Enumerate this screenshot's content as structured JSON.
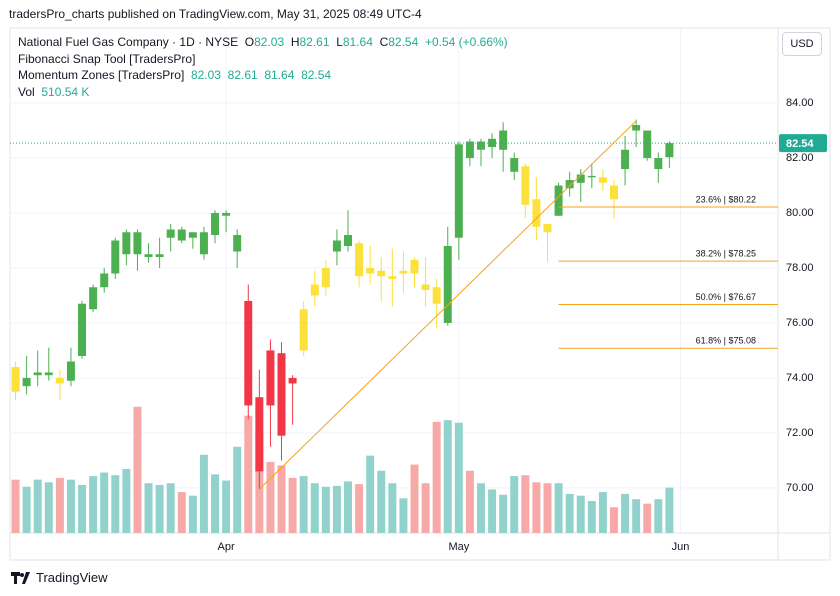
{
  "header": "tradersPro_charts published on TradingView.com, May 31, 2025 08:49 UTC-4",
  "brand": "TradingView",
  "currency": "USD",
  "chart_data": {
    "type": "candlestick",
    "title": "National Fuel Gas Company · 1D · NYSE",
    "ohlc_letters": [
      "O",
      "H",
      "L",
      "C"
    ],
    "change": "+0.54 (+0.66%)",
    "indicators": [
      "Fibonacci Snap Tool [TradersPro]",
      "Momentum Zones [TradersPro]"
    ],
    "volume_name": "Vol",
    "volume_label": "510.54 K",
    "open": [
      74.4,
      73.7,
      74.1,
      74.1,
      74.0,
      73.9,
      74.8,
      76.5,
      77.3,
      77.8,
      78.5,
      79.3,
      78.4,
      78.4,
      79.1,
      79.4,
      79.1,
      78.5,
      79.2,
      79.9,
      78.6,
      76.8,
      73.3,
      75.0,
      74.9,
      74.0,
      75.0,
      77.0,
      77.3,
      78.6,
      78.8,
      78.9,
      77.8,
      77.7,
      77.6,
      77.8,
      78.3,
      77.4,
      77.3,
      76.0,
      79.1,
      82.6,
      82.3,
      82.4,
      82.3,
      81.5,
      81.7,
      80.5,
      79.6,
      79.9,
      80.9,
      81.1,
      81.3,
      81.1,
      81.0,
      81.6,
      83.0,
      83.0,
      81.6,
      82.03
    ],
    "high": [
      74.6,
      74.8,
      75.0,
      75.1,
      74.3,
      75.1,
      76.8,
      77.4,
      78.0,
      79.1,
      79.4,
      79.4,
      78.9,
      79.1,
      79.6,
      79.5,
      79.3,
      79.5,
      80.1,
      80.1,
      79.4,
      77.4,
      74.3,
      75.4,
      75.3,
      74.1,
      76.8,
      77.9,
      78.3,
      79.4,
      80.1,
      79.0,
      78.8,
      78.4,
      78.7,
      78.6,
      78.4,
      78.4,
      77.6,
      79.5,
      82.6,
      82.7,
      82.7,
      82.9,
      83.3,
      82.2,
      81.8,
      81.3,
      79.6,
      81.1,
      81.5,
      81.6,
      81.8,
      81.6,
      81.2,
      82.8,
      83.4,
      83.0,
      82.2,
      82.61
    ],
    "low": [
      73.2,
      73.4,
      73.7,
      73.9,
      73.2,
      73.7,
      74.7,
      76.4,
      77.1,
      77.6,
      78.1,
      77.9,
      78.2,
      78.0,
      78.6,
      78.9,
      78.7,
      78.3,
      78.9,
      79.3,
      78.0,
      72.5,
      69.95,
      71.5,
      71.0,
      72.3,
      74.8,
      76.6,
      77.0,
      78.1,
      78.6,
      77.3,
      77.4,
      76.8,
      76.6,
      77.1,
      77.3,
      76.6,
      75.8,
      75.9,
      78.3,
      81.7,
      81.7,
      82.0,
      81.5,
      81.2,
      79.8,
      79.0,
      78.2,
      79.9,
      80.6,
      80.4,
      80.9,
      80.8,
      79.8,
      81.0,
      82.4,
      81.9,
      81.1,
      81.64
    ],
    "close": [
      73.5,
      74.0,
      74.2,
      74.2,
      73.8,
      74.6,
      76.7,
      77.3,
      77.8,
      79.0,
      79.3,
      78.5,
      78.5,
      78.5,
      79.4,
      79.0,
      79.3,
      79.3,
      80.0,
      80.0,
      79.2,
      73.0,
      70.6,
      73.0,
      71.9,
      73.8,
      76.5,
      77.4,
      78.0,
      79.0,
      79.2,
      77.7,
      78.0,
      77.9,
      77.7,
      77.9,
      77.8,
      77.2,
      76.7,
      78.8,
      82.5,
      82.0,
      82.6,
      82.7,
      83.0,
      82.0,
      80.3,
      79.5,
      79.3,
      81.0,
      81.2,
      81.4,
      81.35,
      81.3,
      80.5,
      82.3,
      83.2,
      82.0,
      82.0,
      82.54
    ],
    "candle_colors": [
      "#fbe13a",
      "#4caf50",
      "#4caf50",
      "#4caf50",
      "#fbe13a",
      "#4caf50",
      "#4caf50",
      "#4caf50",
      "#4caf50",
      "#4caf50",
      "#4caf50",
      "#4caf50",
      "#4caf50",
      "#4caf50",
      "#4caf50",
      "#4caf50",
      "#4caf50",
      "#4caf50",
      "#4caf50",
      "#4caf50",
      "#4caf50",
      "#f23645",
      "#f23645",
      "#f23645",
      "#f23645",
      "#f23645",
      "#fbe13a",
      "#fbe13a",
      "#fbe13a",
      "#4caf50",
      "#4caf50",
      "#fbe13a",
      "#fbe13a",
      "#fbe13a",
      "#fbe13a",
      "#fbe13a",
      "#fbe13a",
      "#fbe13a",
      "#fbe13a",
      "#4caf50",
      "#4caf50",
      "#4caf50",
      "#4caf50",
      "#4caf50",
      "#4caf50",
      "#4caf50",
      "#fbe13a",
      "#fbe13a",
      "#fbe13a",
      "#4caf50",
      "#4caf50",
      "#4caf50",
      "#4caf50",
      "#fbe13a",
      "#fbe13a",
      "#4caf50",
      "#4caf50",
      "#4caf50",
      "#4caf50",
      "#4caf50"
    ],
    "volume": {
      "values": [
        600,
        520,
        600,
        570,
        620,
        600,
        540,
        640,
        680,
        650,
        720,
        1420,
        560,
        540,
        560,
        460,
        420,
        880,
        660,
        590,
        970,
        1320,
        1120,
        800,
        760,
        620,
        640,
        560,
        520,
        530,
        580,
        550,
        870,
        700,
        560,
        390,
        770,
        560,
        1250,
        1270,
        1240,
        700,
        560,
        490,
        430,
        640,
        650,
        570,
        560,
        560,
        440,
        420,
        360,
        460,
        290,
        440,
        380,
        330,
        380,
        510.54
      ],
      "ylim": [
        0,
        1800
      ],
      "up_color": "#92d2cc",
      "down_color": "#f7a9a8"
    },
    "xlim": [
      -0.5,
      68.8
    ],
    "xticks": [
      {
        "value": 19,
        "label": "Apr"
      },
      {
        "value": 40,
        "label": "May"
      },
      {
        "value": 60,
        "label": "Jun"
      }
    ],
    "ylim": [
      68.36,
      86.73
    ],
    "yticks": [
      {
        "value": 70,
        "label": "70.00"
      },
      {
        "value": 72,
        "label": "72.00"
      },
      {
        "value": 74,
        "label": "74.00"
      },
      {
        "value": 76,
        "label": "76.00"
      },
      {
        "value": 78,
        "label": "78.00"
      },
      {
        "value": 80,
        "label": "80.00"
      },
      {
        "value": 82,
        "label": "82.00"
      },
      {
        "value": 84,
        "label": "84.00"
      }
    ],
    "grid": true,
    "last_price_color": "#22ab94",
    "fib": {
      "color": "#f7a21b",
      "from": [
        22,
        69.95
      ],
      "to": [
        56,
        83.35
      ],
      "levels_start": 49,
      "levels": [
        {
          "value": 80.22,
          "label": "23.6% | $80.22"
        },
        {
          "value": 78.25,
          "label": "38.2% | $78.25"
        },
        {
          "value": 76.67,
          "label": "50.0% | $76.67"
        },
        {
          "value": 75.08,
          "label": "61.8% | $75.08"
        }
      ]
    }
  }
}
